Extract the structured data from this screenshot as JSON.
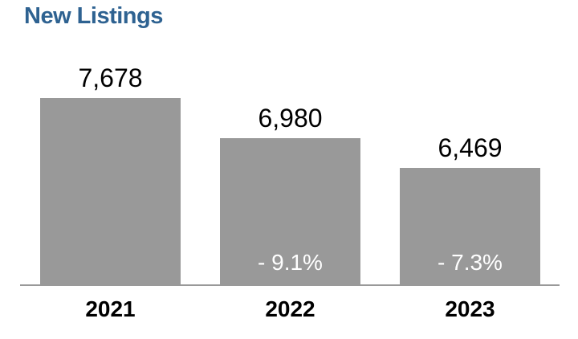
{
  "chart_data": {
    "type": "bar",
    "title": "New Listings",
    "categories": [
      "2021",
      "2022",
      "2023"
    ],
    "values": [
      7678,
      6980,
      6469
    ],
    "value_labels": [
      "7,678",
      "6,980",
      "6,469"
    ],
    "pct_change_labels": [
      null,
      "- 9.1%",
      "- 7.3%"
    ],
    "xlabel": "",
    "ylabel": "",
    "ylim": [
      4450,
      7900
    ],
    "grid": false,
    "legend": false,
    "colors": {
      "title": "#2e6291",
      "bar": "#999999",
      "value_text": "#000000",
      "pct_text": "#ffffff",
      "year_text": "#000000",
      "axis_line": "#999999",
      "background": "#ffffff"
    }
  }
}
